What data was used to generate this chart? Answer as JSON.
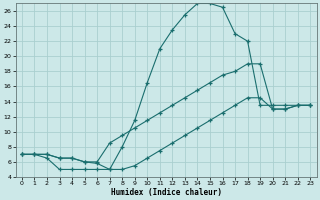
{
  "xlabel": "Humidex (Indice chaleur)",
  "bg_color": "#cce8e8",
  "plot_bg_color": "#cce8e8",
  "grid_color": "#aacfcf",
  "line_color": "#1a6e6e",
  "xlim": [
    -0.5,
    23.5
  ],
  "ylim": [
    4,
    27
  ],
  "yticks": [
    4,
    6,
    8,
    10,
    12,
    14,
    16,
    18,
    20,
    22,
    24,
    26
  ],
  "xticks": [
    0,
    1,
    2,
    3,
    4,
    5,
    6,
    7,
    8,
    9,
    10,
    11,
    12,
    13,
    14,
    15,
    16,
    17,
    18,
    19,
    20,
    21,
    22,
    23
  ],
  "line1_x": [
    0,
    1,
    2,
    3,
    4,
    5,
    6,
    7,
    8,
    9,
    10,
    11,
    12,
    13,
    14,
    15,
    16,
    17,
    18,
    19,
    20,
    21,
    22,
    23
  ],
  "line1_y": [
    7.0,
    7.0,
    6.5,
    5.0,
    5.0,
    5.0,
    5.0,
    5.0,
    8.0,
    11.5,
    16.5,
    21.0,
    23.5,
    25.5,
    27.0,
    27.0,
    26.5,
    23.0,
    22.0,
    13.5,
    13.5,
    13.5,
    13.5,
    13.5
  ],
  "line2_x": [
    0,
    1,
    2,
    3,
    4,
    5,
    6,
    7,
    8,
    9,
    10,
    11,
    12,
    13,
    14,
    15,
    16,
    17,
    18,
    19,
    20,
    21,
    22,
    23
  ],
  "line2_y": [
    7.0,
    7.0,
    7.0,
    6.5,
    6.5,
    6.0,
    6.0,
    8.5,
    9.5,
    10.5,
    11.5,
    12.5,
    13.5,
    14.5,
    15.5,
    16.5,
    17.5,
    18.0,
    19.0,
    19.0,
    13.0,
    13.0,
    13.5,
    13.5
  ],
  "line3_x": [
    0,
    1,
    2,
    3,
    4,
    5,
    6,
    7,
    8,
    9,
    10,
    11,
    12,
    13,
    14,
    15,
    16,
    17,
    18,
    19,
    20,
    21,
    22,
    23
  ],
  "line3_y": [
    7.0,
    7.0,
    7.0,
    6.5,
    6.5,
    6.0,
    5.8,
    5.0,
    5.0,
    5.5,
    6.5,
    7.5,
    8.5,
    9.5,
    10.5,
    11.5,
    12.5,
    13.5,
    14.5,
    14.5,
    13.0,
    13.0,
    13.5,
    13.5
  ]
}
